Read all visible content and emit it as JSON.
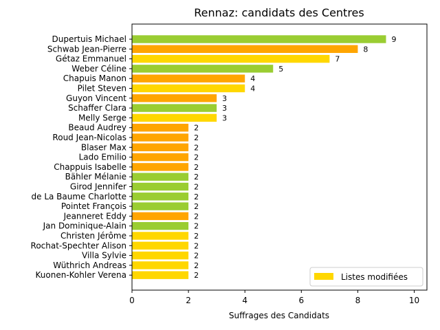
{
  "chart_data": {
    "type": "bar",
    "orientation": "horizontal",
    "title": "Rennaz: candidats des Centres",
    "xlabel": "Suffrages des Candidats",
    "ylabel": "",
    "xlim": [
      0,
      10.45
    ],
    "xticks": [
      "0",
      "2",
      "4",
      "6",
      "8",
      "10"
    ],
    "grid": false,
    "legend": {
      "placement": "lower-right",
      "label": "Listes modifiées",
      "color": "#FFD700"
    },
    "colors": {
      "green": "#9ACD32",
      "orange": "#FFA500",
      "gold": "#FFD700"
    },
    "bars": [
      {
        "label": "Dupertuis Michael",
        "value": 9,
        "color": "green"
      },
      {
        "label": "Schwab Jean-Pierre",
        "value": 8,
        "color": "orange"
      },
      {
        "label": "Gétaz Emmanuel",
        "value": 7,
        "color": "gold"
      },
      {
        "label": "Weber Céline",
        "value": 5,
        "color": "green"
      },
      {
        "label": "Chapuis Manon",
        "value": 4,
        "color": "orange"
      },
      {
        "label": "Pilet Steven",
        "value": 4,
        "color": "gold"
      },
      {
        "label": "Guyon Vincent",
        "value": 3,
        "color": "orange"
      },
      {
        "label": "Schaffer Clara",
        "value": 3,
        "color": "green"
      },
      {
        "label": "Melly Serge",
        "value": 3,
        "color": "gold"
      },
      {
        "label": "Beaud Audrey",
        "value": 2,
        "color": "orange"
      },
      {
        "label": "Roud Jean-Nicolas",
        "value": 2,
        "color": "orange"
      },
      {
        "label": "Blaser Max",
        "value": 2,
        "color": "orange"
      },
      {
        "label": "Lado Emilio",
        "value": 2,
        "color": "orange"
      },
      {
        "label": "Chappuis Isabelle",
        "value": 2,
        "color": "orange"
      },
      {
        "label": "Bähler Mélanie",
        "value": 2,
        "color": "green"
      },
      {
        "label": "Girod Jennifer",
        "value": 2,
        "color": "green"
      },
      {
        "label": "de La Baume Charlotte",
        "value": 2,
        "color": "green"
      },
      {
        "label": "Pointet François",
        "value": 2,
        "color": "green"
      },
      {
        "label": "Jeanneret Eddy",
        "value": 2,
        "color": "orange"
      },
      {
        "label": "Jan Dominique-Alain",
        "value": 2,
        "color": "green"
      },
      {
        "label": "Christen Jérôme",
        "value": 2,
        "color": "gold"
      },
      {
        "label": "Rochat-Spechter Alison",
        "value": 2,
        "color": "gold"
      },
      {
        "label": "Villa Sylvie",
        "value": 2,
        "color": "gold"
      },
      {
        "label": "Wüthrich Andreas",
        "value": 2,
        "color": "gold"
      },
      {
        "label": "Kuonen-Kohler Verena",
        "value": 2,
        "color": "gold"
      }
    ]
  }
}
